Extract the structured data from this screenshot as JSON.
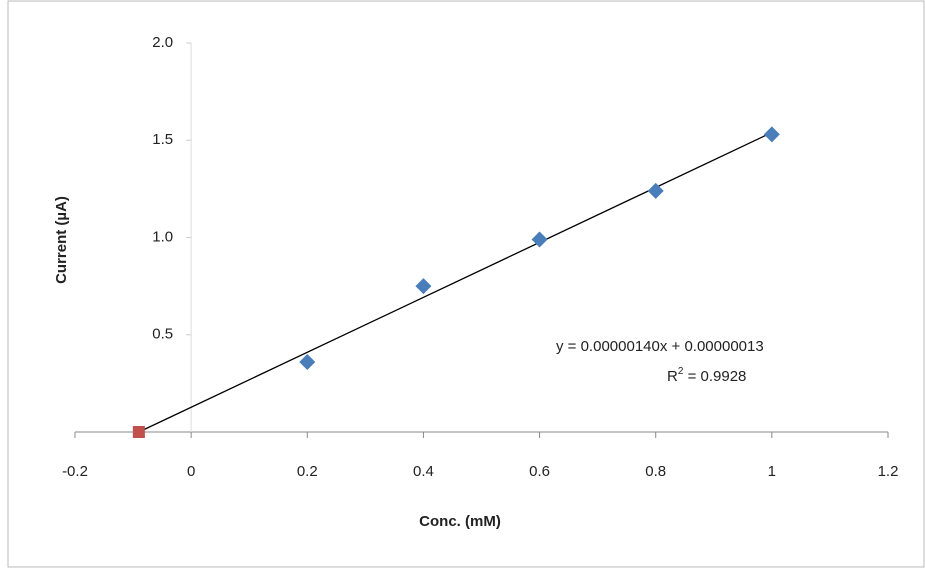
{
  "chart_data": {
    "type": "scatter",
    "x_label": "Conc. (mM)",
    "y_label": "Current (µA)",
    "xlim": [
      -0.2,
      1.2
    ],
    "xticks": [
      -0.2,
      0,
      0.2,
      0.4,
      0.6,
      0.8,
      1,
      1.2
    ],
    "ylim": [
      0,
      2
    ],
    "yticks": [
      0.5,
      {
        "value": 1,
        "label": "1.0"
      },
      1.5,
      {
        "value": 2,
        "label": "2.0"
      }
    ],
    "grid": false,
    "series": [
      {
        "color": "#4a7ebb",
        "marker": "diamond",
        "x": [
          0.2,
          0.4,
          0.6,
          0.8,
          1
        ],
        "values": [
          0.36,
          0.75,
          0.99,
          1.24,
          1.53
        ]
      },
      {
        "color": "#c0504d",
        "marker": "square",
        "x": [
          -0.09
        ],
        "values": [
          0
        ]
      }
    ],
    "trendline": {
      "color": "#000000",
      "x": [
        -0.09,
        1
      ],
      "values": [
        0.0,
        1.54
      ]
    },
    "equation": "y = 0.00000140x + 0.00000013",
    "r_squared": {
      "symbol": "R",
      "exponent": "2",
      "text": " = 0.9928"
    }
  }
}
